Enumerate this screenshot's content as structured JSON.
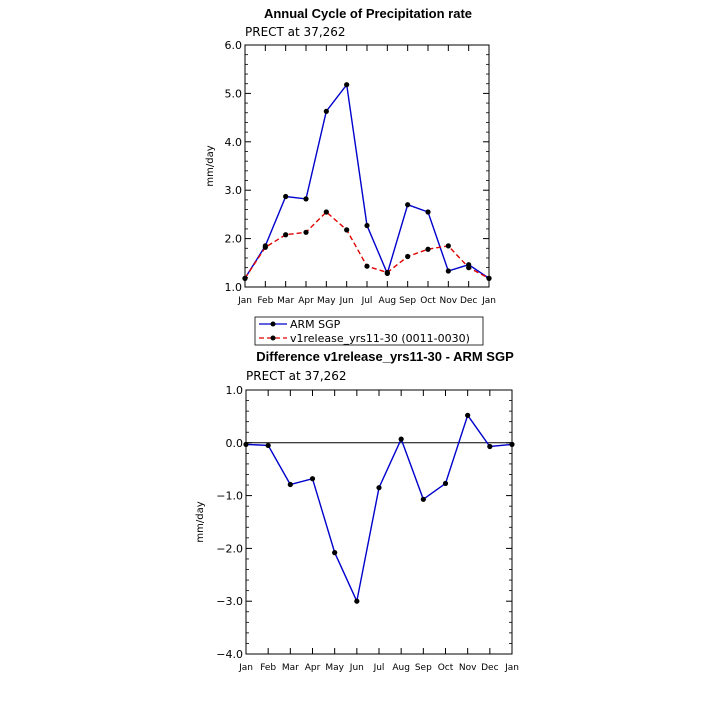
{
  "chart_data": [
    {
      "type": "line",
      "title": "Annual Cycle of Precipitation rate",
      "subtitle": "PRECT at 37,262",
      "ylabel": "mm/day",
      "ylim": [
        1.0,
        6.0
      ],
      "yticks": [
        "1.0",
        "2.0",
        "3.0",
        "4.0",
        "5.0",
        "6.0"
      ],
      "categories": [
        "Jan",
        "Feb",
        "Mar",
        "Apr",
        "May",
        "Jun",
        "Jul",
        "Aug",
        "Sep",
        "Oct",
        "Nov",
        "Dec",
        "Jan"
      ],
      "series": [
        {
          "name": "ARM SGP",
          "color": "#0000cc",
          "dash": "solid",
          "values": [
            1.18,
            1.85,
            2.87,
            2.82,
            4.63,
            5.18,
            2.27,
            1.28,
            2.7,
            2.55,
            1.33,
            1.46,
            1.18
          ]
        },
        {
          "name": "v1release_yrs11-30 (0011-0030)",
          "color": "#e00000",
          "dash": "dashed",
          "values": [
            1.18,
            1.82,
            2.08,
            2.13,
            2.55,
            2.18,
            1.43,
            1.3,
            1.63,
            1.78,
            1.85,
            1.4,
            1.18
          ]
        }
      ],
      "legend": "bottom-left"
    },
    {
      "type": "line",
      "title": "Difference v1release_yrs11-30 - ARM SGP",
      "subtitle": "PRECT at 37,262",
      "ylabel": "mm/day",
      "ylim": [
        -4.0,
        1.0
      ],
      "yticks": [
        "−4.0",
        "−3.0",
        "−2.0",
        "−1.0",
        "0.0",
        "1.0"
      ],
      "categories": [
        "Jan",
        "Feb",
        "Mar",
        "Apr",
        "May",
        "Jun",
        "Jul",
        "Aug",
        "Sep",
        "Oct",
        "Nov",
        "Dec",
        "Jan"
      ],
      "series": [
        {
          "color": "#0000cc",
          "dash": "solid",
          "values": [
            -0.03,
            -0.05,
            -0.79,
            -0.68,
            -2.08,
            -3.0,
            -0.85,
            0.07,
            -1.07,
            -0.77,
            0.52,
            -0.07,
            -0.03
          ]
        }
      ],
      "zero_line": true
    }
  ]
}
